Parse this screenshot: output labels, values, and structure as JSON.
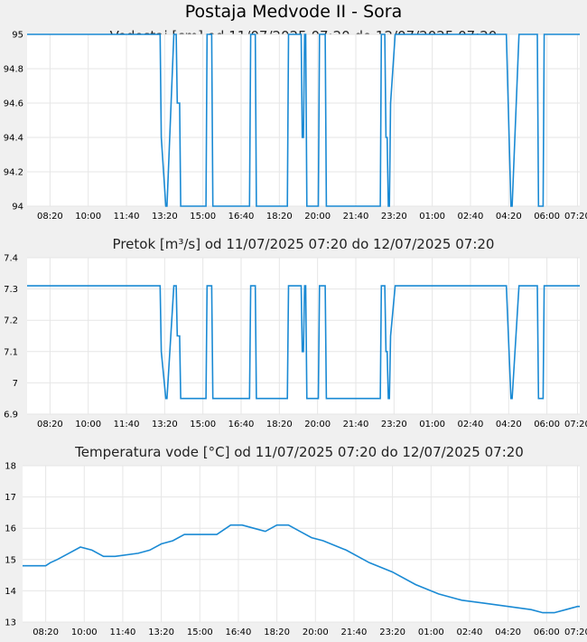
{
  "title": "Postaja Medvode II - Sora",
  "colors": {
    "line": "#1a8ad4",
    "page_background": "#f0f0f0",
    "plot_background": "#ffffff",
    "grid": "#e6e6e6"
  },
  "chart_data": [
    {
      "type": "line",
      "title": "Vodostaj [cm] od 11/07/2025 07:20 do 12/07/2025 07:20",
      "xlabel": "",
      "ylabel": "",
      "x_tick_labels": [
        "08:20",
        "10:00",
        "11:40",
        "13:20",
        "15:00",
        "16:40",
        "18:20",
        "20:00",
        "21:40",
        "23:20",
        "01:00",
        "02:40",
        "04:20",
        "06:00",
        "07:20"
      ],
      "y_ticks": [
        94,
        94.2,
        94.4,
        94.6,
        94.8,
        95
      ],
      "y_tick_labels": [
        "94",
        "94.2",
        "94.4",
        "94.6",
        "94.8",
        "95"
      ],
      "ylim": [
        94,
        95
      ],
      "xlim_hours": [
        0,
        24.1
      ],
      "grid": true,
      "series": [
        {
          "x_hours": [
            0,
            5.8,
            5.85,
            6.05,
            6.1,
            6.4,
            6.5,
            6.55,
            6.65,
            6.7,
            7.8,
            7.85,
            8.05,
            8.1,
            9.7,
            9.75,
            9.95,
            10,
            11.35,
            11.4,
            11.95,
            12,
            12.05,
            12.1,
            12.15,
            12.2,
            12.7,
            12.75,
            13,
            13.05,
            15.4,
            15.45,
            15.6,
            15.65,
            15.7,
            15.75,
            15.8,
            15.85,
            16.05,
            16.1,
            20.85,
            20.9,
            21.1,
            21.15,
            21.45,
            21.5,
            22.25,
            22.3,
            22.5,
            22.55,
            24.1
          ],
          "y": [
            95,
            95,
            94.4,
            94,
            94,
            95,
            95,
            94.6,
            94.6,
            94,
            94,
            95,
            95,
            94,
            94,
            95,
            95,
            94,
            94,
            95,
            95,
            94.4,
            94.4,
            95,
            95,
            94,
            94,
            95,
            95,
            94,
            94,
            95,
            95,
            94.4,
            94.4,
            94,
            94,
            94.6,
            95,
            95,
            95,
            95,
            94,
            94,
            95,
            95,
            95,
            94,
            94,
            95,
            95
          ]
        }
      ]
    },
    {
      "type": "line",
      "title": "Pretok [m³/s] od 11/07/2025 07:20 do 12/07/2025 07:20",
      "xlabel": "",
      "ylabel": "",
      "x_tick_labels": [
        "08:20",
        "10:00",
        "11:40",
        "13:20",
        "15:00",
        "16:40",
        "18:20",
        "20:00",
        "21:40",
        "23:20",
        "01:00",
        "02:40",
        "04:20",
        "06:00",
        "07:20"
      ],
      "y_ticks": [
        6.9,
        7,
        7.1,
        7.2,
        7.3,
        7.4
      ],
      "y_tick_labels": [
        "6.9",
        "7",
        "7.1",
        "7.2",
        "7.3",
        "7.4"
      ],
      "ylim": [
        6.9,
        7.4
      ],
      "xlim_hours": [
        0,
        24.1
      ],
      "grid": true,
      "series": [
        {
          "x_hours": [
            0,
            5.8,
            5.85,
            6.05,
            6.1,
            6.4,
            6.5,
            6.55,
            6.65,
            6.7,
            7.8,
            7.85,
            8.05,
            8.1,
            9.7,
            9.75,
            9.95,
            10,
            11.35,
            11.4,
            11.95,
            12,
            12.05,
            12.1,
            12.15,
            12.2,
            12.7,
            12.75,
            13,
            13.05,
            15.4,
            15.45,
            15.6,
            15.65,
            15.7,
            15.75,
            15.8,
            15.85,
            16.05,
            16.1,
            20.85,
            20.9,
            21.1,
            21.15,
            21.45,
            21.5,
            22.25,
            22.3,
            22.5,
            22.55,
            24.1
          ],
          "y": [
            7.31,
            7.31,
            7.1,
            6.95,
            6.95,
            7.31,
            7.31,
            7.15,
            7.15,
            6.95,
            6.95,
            7.31,
            7.31,
            6.95,
            6.95,
            7.31,
            7.31,
            6.95,
            6.95,
            7.31,
            7.31,
            7.1,
            7.1,
            7.31,
            7.31,
            6.95,
            6.95,
            7.31,
            7.31,
            6.95,
            6.95,
            7.31,
            7.31,
            7.1,
            7.1,
            6.95,
            6.95,
            7.15,
            7.31,
            7.31,
            7.31,
            7.31,
            6.95,
            6.95,
            7.31,
            7.31,
            7.31,
            6.95,
            6.95,
            7.31,
            7.31
          ]
        }
      ]
    },
    {
      "type": "line",
      "title": "Temperatura vode [°C] od 11/07/2025 07:20 do 12/07/2025 07:20",
      "xlabel": "",
      "ylabel": "",
      "x_tick_labels": [
        "08:20",
        "10:00",
        "11:40",
        "13:20",
        "15:00",
        "16:40",
        "18:20",
        "20:00",
        "21:40",
        "23:20",
        "01:00",
        "02:40",
        "04:20",
        "06:00",
        "07:20"
      ],
      "y_ticks": [
        13,
        14,
        15,
        16,
        17,
        18
      ],
      "y_tick_labels": [
        "13",
        "14",
        "15",
        "16",
        "17",
        "18"
      ],
      "ylim": [
        13,
        18
      ],
      "xlim_hours": [
        0,
        24.1
      ],
      "grid": true,
      "series": [
        {
          "x_hours": [
            0,
            1,
            1.2,
            1.5,
            2,
            2.5,
            3,
            3.5,
            4,
            5,
            5.5,
            6,
            6.5,
            7,
            8,
            8.4,
            8.8,
            9,
            9.5,
            10,
            10.5,
            11,
            11.5,
            12,
            12.5,
            13,
            14,
            15,
            16,
            17,
            18,
            19,
            20,
            21,
            22,
            22.5,
            23,
            23.5,
            24,
            24.1
          ],
          "y": [
            14.8,
            14.8,
            14.9,
            15.0,
            15.2,
            15.4,
            15.3,
            15.1,
            15.1,
            15.2,
            15.3,
            15.5,
            15.6,
            15.8,
            15.8,
            15.8,
            16.0,
            16.1,
            16.1,
            16.0,
            15.9,
            16.1,
            16.1,
            15.9,
            15.7,
            15.6,
            15.3,
            14.9,
            14.6,
            14.2,
            13.9,
            13.7,
            13.6,
            13.5,
            13.4,
            13.3,
            13.3,
            13.4,
            13.5,
            13.5
          ]
        }
      ]
    }
  ]
}
